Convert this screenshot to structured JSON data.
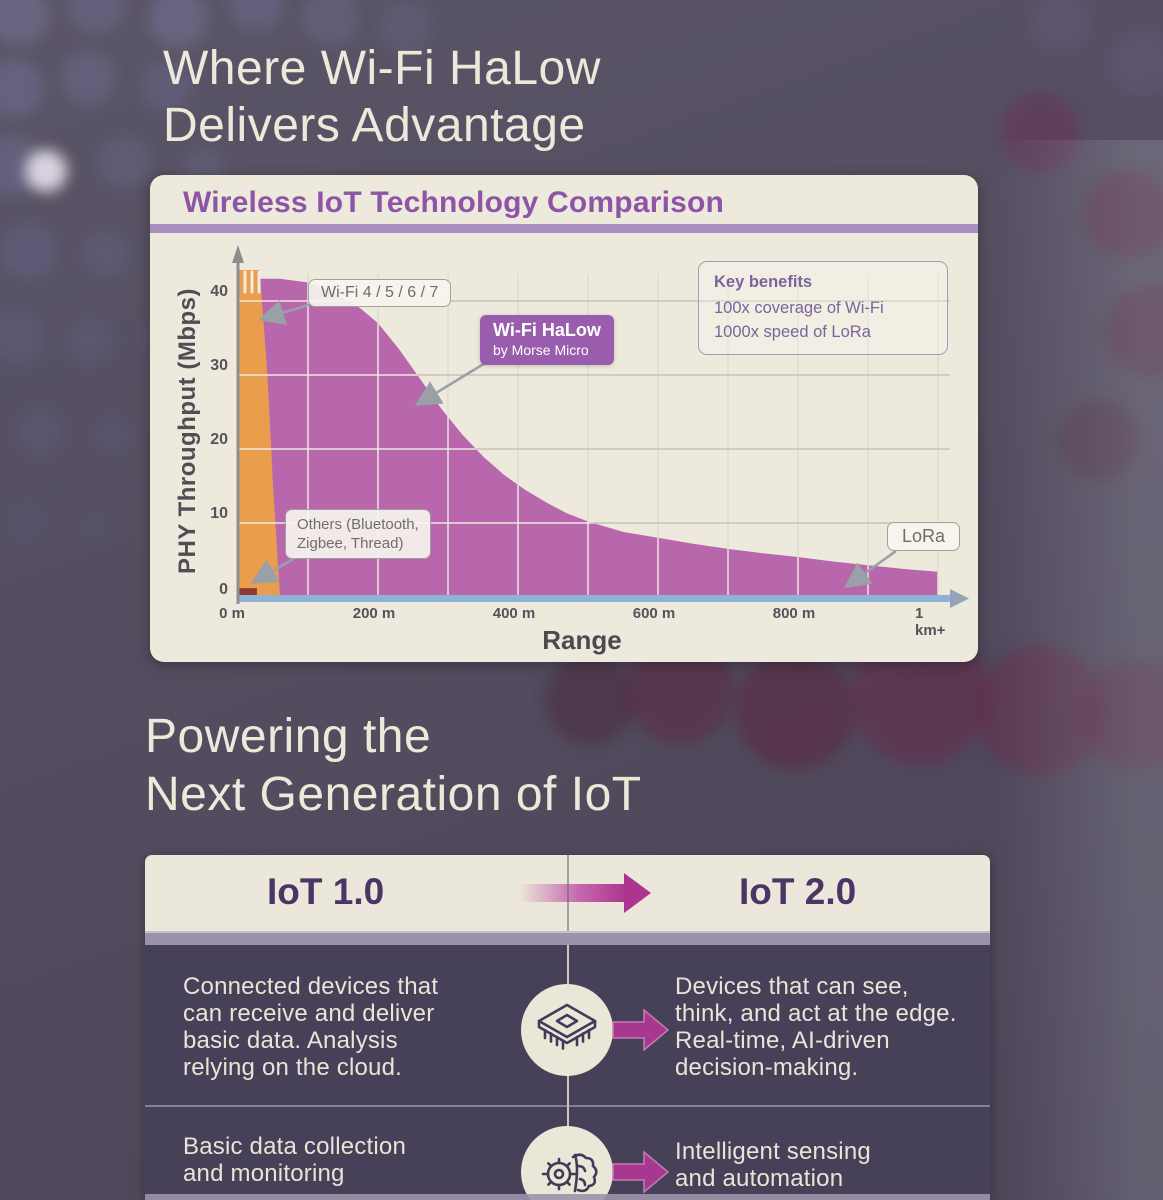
{
  "page": {
    "title_line1": "Where Wi-Fi HaLow",
    "title_line2": "Delivers Advantage",
    "section2_line1": "Powering the",
    "section2_line2": "Next Generation of IoT"
  },
  "chart_panel": {
    "title": "Wireless IoT Technology Comparison",
    "ylabel": "PHY Throughput (Mbps)",
    "xlabel": "Range",
    "yticks": [
      "0",
      "10",
      "20",
      "30",
      "40"
    ],
    "xticks": [
      "0 m",
      "200 m",
      "400 m",
      "600 m",
      "800 m",
      "1 km+"
    ],
    "labels": {
      "wifi": "Wi-Fi 4 / 5 / 6 / 7",
      "halow_title": "Wi-Fi HaLow",
      "halow_sub": "by Morse Micro",
      "others_line1": "Others (Bluetooth,",
      "others_line2": "Zigbee, Thread)",
      "lora": "LoRa",
      "key_title": "Key benefits",
      "key_1": "100x coverage of Wi-Fi",
      "key_2": "1000x speed of LoRa"
    }
  },
  "chart_data": {
    "type": "area",
    "title": "Wireless IoT Technology Comparison",
    "xlabel": "Range",
    "ylabel": "PHY Throughput (Mbps)",
    "xlim_m": [
      0,
      1000
    ],
    "ylim_mbps": [
      0,
      44
    ],
    "xticks_m": [
      0,
      200,
      400,
      600,
      800,
      1000
    ],
    "yticks_mbps": [
      0,
      10,
      20,
      30,
      40
    ],
    "grid": "vertical every 100 m, horizontal every 10 Mbps",
    "legend_position": "inline-callouts",
    "series": [
      {
        "name": "Wi-Fi HaLow by Morse Micro",
        "color": "#b867ad",
        "x_m": [
          0,
          60,
          100,
          140,
          175,
          200,
          230,
          260,
          290,
          320,
          350,
          380,
          410,
          440,
          470,
          500,
          550,
          600,
          650,
          700,
          750,
          800,
          850,
          900,
          950,
          1000
        ],
        "y_mbps": [
          43,
          43,
          42.5,
          41,
          39,
          37,
          33.5,
          29.5,
          25.5,
          22,
          19,
          16.5,
          14.5,
          12.8,
          11.3,
          10.2,
          8.8,
          8.0,
          7.2,
          6.5,
          5.9,
          5.4,
          4.8,
          4.3,
          3.8,
          3.4
        ]
      },
      {
        "name": "Wi-Fi 4 / 5 / 6 / 7",
        "color": "#eb9d4e",
        "x_m": [
          0,
          60
        ],
        "y_mbps": [
          44,
          0
        ],
        "note": "narrow wedge near origin; top exceeds chart (break marks above 44 Mbps)"
      },
      {
        "name": "Others (Bluetooth, Zigbee, Thread)",
        "color": "#8e3a33",
        "x_m": [
          0,
          27
        ],
        "y_mbps": [
          1.2,
          1.2
        ]
      },
      {
        "name": "LoRa",
        "color": "#8db3d8",
        "x_m": [
          0,
          1000
        ],
        "y_mbps": [
          0.9,
          0.9
        ],
        "note": "thin strip along x-axis extending past 1 km+"
      }
    ],
    "annotations": [
      "Key benefits",
      "100x coverage of Wi-Fi",
      "1000x speed of LoRa"
    ]
  },
  "iot_table": {
    "header_left": "IoT 1.0",
    "header_right": "IoT 2.0",
    "rows": [
      {
        "left": [
          "Connected devices that",
          "can receive and deliver",
          "basic data. Analysis",
          "relying on the cloud."
        ],
        "icon": "chip-icon",
        "right": [
          "Devices that can see,",
          "think, and act at the edge.",
          "Real-time, AI-driven",
          "decision-making."
        ]
      },
      {
        "left": [
          "Basic data collection",
          "and monitoring"
        ],
        "icon": "gear-brain-icon",
        "right": [
          "Intelligent sensing",
          "and automation"
        ]
      }
    ]
  },
  "colors": {
    "background": "#534e60",
    "cream": "#edeadd",
    "heading_text": "#ece9da",
    "panel_title_purple": "#8e55a7",
    "halow_area": "#b867ad",
    "wifi_area": "#eb9d4e",
    "others_area": "#8e3a33",
    "lora_strip": "#8db3d8",
    "halow_badge": "#9a5dad",
    "iot_header_text": "#4b3566",
    "table_body": "#474059",
    "magenta_arrow": "#a8388f"
  }
}
